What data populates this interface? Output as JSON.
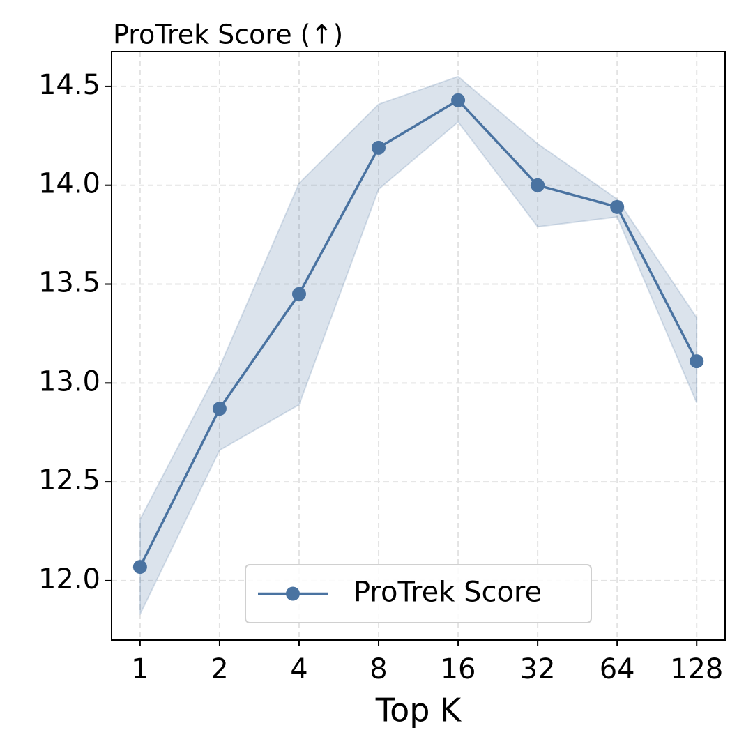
{
  "chart_data": {
    "type": "line",
    "title": "ProTrek Score (↑)",
    "x_label": "Top K",
    "x": [
      1,
      2,
      4,
      8,
      16,
      32,
      64,
      128
    ],
    "xscale": "log2",
    "xlim": [
      0.78,
      164
    ],
    "xticks": [
      1,
      2,
      4,
      8,
      16,
      32,
      64,
      128
    ],
    "ylim": [
      11.7,
      14.676
    ],
    "yticks": [
      {
        "value": 12,
        "label": "12.0"
      },
      12.5,
      {
        "value": 13,
        "label": "13.0"
      },
      13.5,
      {
        "value": 14,
        "label": "14.0"
      },
      14.5
    ],
    "grid": true,
    "legend": "lower center",
    "series": [
      {
        "name": "ProTrek Score",
        "color": "#4a73a1",
        "values": [
          12.07,
          12.87,
          13.45,
          14.19,
          14.43,
          14.0,
          13.89,
          13.11
        ],
        "lower": [
          11.83,
          12.66,
          12.89,
          13.98,
          14.32,
          13.79,
          13.84,
          12.9
        ],
        "upper": [
          12.31,
          13.08,
          14.01,
          14.41,
          14.55,
          14.21,
          13.93,
          13.33
        ]
      }
    ]
  }
}
